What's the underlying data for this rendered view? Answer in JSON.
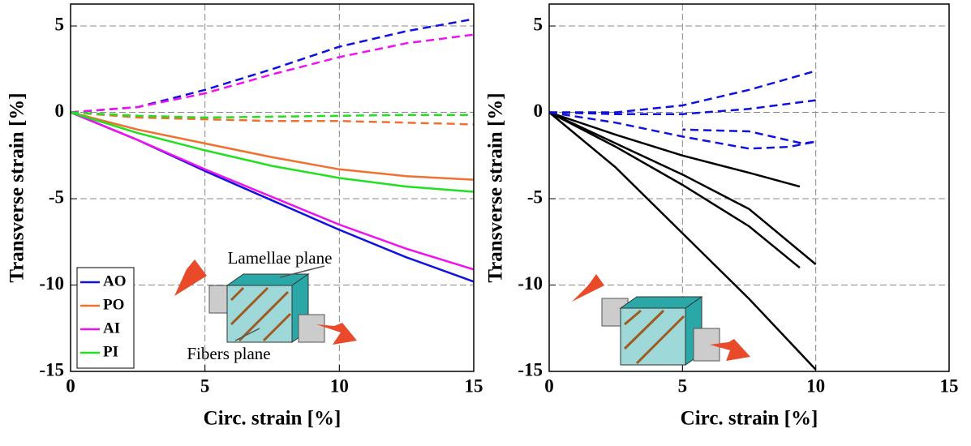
{
  "chart_data": [
    {
      "type": "line",
      "xlabel": "Circ. strain [%]",
      "ylabel": "Transverse strain [%]",
      "xlim": [
        0,
        15
      ],
      "ylim": [
        -15,
        6.27
      ],
      "xticks": [
        0,
        5,
        10,
        15
      ],
      "yticks": [
        -15,
        -10,
        -5,
        0,
        5
      ],
      "grid": true,
      "legend": "lower left",
      "annotations": [
        "Lamellae plane",
        "Fibers plane"
      ],
      "x": [
        0,
        2.5,
        5,
        7.5,
        10,
        12.5,
        15
      ],
      "series": [
        {
          "name": "AO",
          "color": "#1010e0",
          "values": [
            0,
            -1.6,
            -3.4,
            -5.1,
            -6.8,
            -8.4,
            -9.8
          ],
          "dashed_values": [
            0,
            0.3,
            1.3,
            2.5,
            3.8,
            4.7,
            5.4
          ]
        },
        {
          "name": "PO",
          "color": "#f07030",
          "values": [
            0,
            -1.0,
            -1.8,
            -2.6,
            -3.3,
            -3.7,
            -3.9
          ],
          "dashed_values": [
            0,
            -0.3,
            -0.4,
            -0.5,
            -0.5,
            -0.6,
            -0.7
          ]
        },
        {
          "name": "AI",
          "color": "#f010f0",
          "values": [
            0,
            -1.6,
            -3.3,
            -4.9,
            -6.5,
            -7.9,
            -9.1
          ],
          "dashed_values": [
            0,
            0.3,
            1.1,
            2.2,
            3.2,
            4.0,
            4.5
          ]
        },
        {
          "name": "PI",
          "color": "#20e020",
          "values": [
            0,
            -1.2,
            -2.2,
            -3.1,
            -3.8,
            -4.3,
            -4.6
          ],
          "dashed_values": [
            0,
            -0.2,
            -0.3,
            -0.25,
            -0.2,
            -0.15,
            -0.15
          ]
        }
      ]
    },
    {
      "type": "line",
      "xlabel": "Circ. strain [%]",
      "ylabel": "Transverse strain [%]",
      "xlim": [
        0,
        15
      ],
      "ylim": [
        -15,
        6.27
      ],
      "xticks": [
        0,
        5,
        10,
        15
      ],
      "yticks": [
        -15,
        -10,
        -5,
        0,
        5
      ],
      "grid": true,
      "series": [
        {
          "color": "#000000",
          "dashed": false,
          "x": [
            0,
            2.5,
            5,
            7.5,
            9.4
          ],
          "values": [
            0,
            -1.3,
            -2.5,
            -3.5,
            -4.3
          ]
        },
        {
          "color": "#000000",
          "dashed": false,
          "x": [
            0,
            2.5,
            5,
            7.5,
            10
          ],
          "values": [
            0,
            -1.8,
            -3.6,
            -5.6,
            -8.8
          ]
        },
        {
          "color": "#000000",
          "dashed": false,
          "x": [
            0,
            2.5,
            5,
            7.5,
            9.4
          ],
          "values": [
            0,
            -2.0,
            -4.2,
            -6.6,
            -9.0
          ]
        },
        {
          "color": "#000000",
          "dashed": false,
          "x": [
            0,
            2.5,
            5,
            7.5,
            10
          ],
          "values": [
            0,
            -3.2,
            -7.0,
            -10.8,
            -14.9
          ]
        },
        {
          "color": "#1010e0",
          "dashed": true,
          "x": [
            0,
            2.5,
            5,
            7.5,
            10
          ],
          "values": [
            0,
            0,
            0.4,
            1.3,
            2.4
          ]
        },
        {
          "color": "#1010e0",
          "dashed": true,
          "x": [
            0,
            2.5,
            5,
            7.5,
            10
          ],
          "values": [
            0,
            -0.1,
            -0.1,
            0.2,
            0.7
          ]
        },
        {
          "color": "#1010e0",
          "dashed": true,
          "x": [
            0,
            2.5,
            5,
            7.5,
            9,
            10,
            9.5,
            7.5,
            5
          ],
          "values": [
            0,
            -0.6,
            -1.4,
            -2.1,
            -2.0,
            -1.7,
            -1.8,
            -1.1,
            -1.0
          ]
        }
      ]
    }
  ]
}
